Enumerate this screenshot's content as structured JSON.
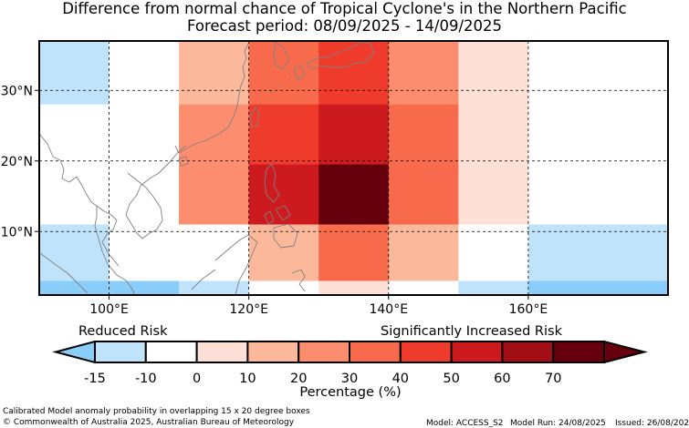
{
  "title": {
    "line1": "Difference from normal chance of Tropical Cyclone's in the Northern Pacific",
    "line2": "Forecast period: 08/09/2025 - 14/09/2025"
  },
  "map": {
    "lon_ticks": [
      "100°E",
      "120°E",
      "140°E",
      "160°E"
    ],
    "lat_ticks": [
      "30°N",
      "20°N",
      "10°N"
    ],
    "lon_tick_values": [
      100,
      120,
      140,
      160
    ],
    "lat_tick_values": [
      30,
      20,
      10
    ],
    "lon_range": [
      90,
      180
    ],
    "lat_range": [
      1,
      37
    ],
    "lat_rows": [
      [
        28,
        37
      ],
      [
        19.5,
        28
      ],
      [
        11,
        19.5
      ],
      [
        3,
        11
      ],
      [
        1,
        3
      ]
    ],
    "cell_width_deg": 10,
    "cell_columns_start_lon": [
      90,
      100,
      110,
      120,
      130,
      140,
      150,
      160,
      170
    ],
    "anomaly_percent": [
      [
        -10,
        0,
        25,
        45,
        55,
        35,
        15,
        0,
        0
      ],
      [
        0,
        5,
        35,
        55,
        65,
        45,
        15,
        0,
        0
      ],
      [
        0,
        5,
        35,
        65,
        75,
        45,
        15,
        0,
        0
      ],
      [
        -10,
        0,
        5,
        25,
        45,
        25,
        0,
        -10,
        -10
      ],
      [
        -20,
        -20,
        -10,
        5,
        15,
        5,
        -10,
        -20,
        -20
      ]
    ]
  },
  "legend": {
    "reduced_label": "Reduced Risk",
    "increased_label": "Significantly Increased Risk",
    "tick_labels": [
      "-15",
      "-10",
      "0",
      "10",
      "20",
      "30",
      "40",
      "50",
      "60",
      "70"
    ],
    "xlabel": "Percentage (%)",
    "colors": [
      "#bfe3fb",
      "#ffffff",
      "#ffe0d6",
      "#fcb89b",
      "#fc8e6f",
      "#f86a4c",
      "#ee3b2c",
      "#cc1a1e",
      "#a20e16",
      "#67000d"
    ],
    "under_color": "#8bcdf9",
    "over_color": "#67000d",
    "scale_max": 70
  },
  "footer": {
    "left_line1": "Calibrated Model anomaly probability in overlapping 15 x 20 degree boxes",
    "left_line2": "© Commonwealth of Australia 2025, Australian Bureau of Meteorology",
    "model": "Model: ACCESS_S2",
    "run": "Model Run: 24/08/2025",
    "issued": "Issued: 26/08/2025"
  }
}
